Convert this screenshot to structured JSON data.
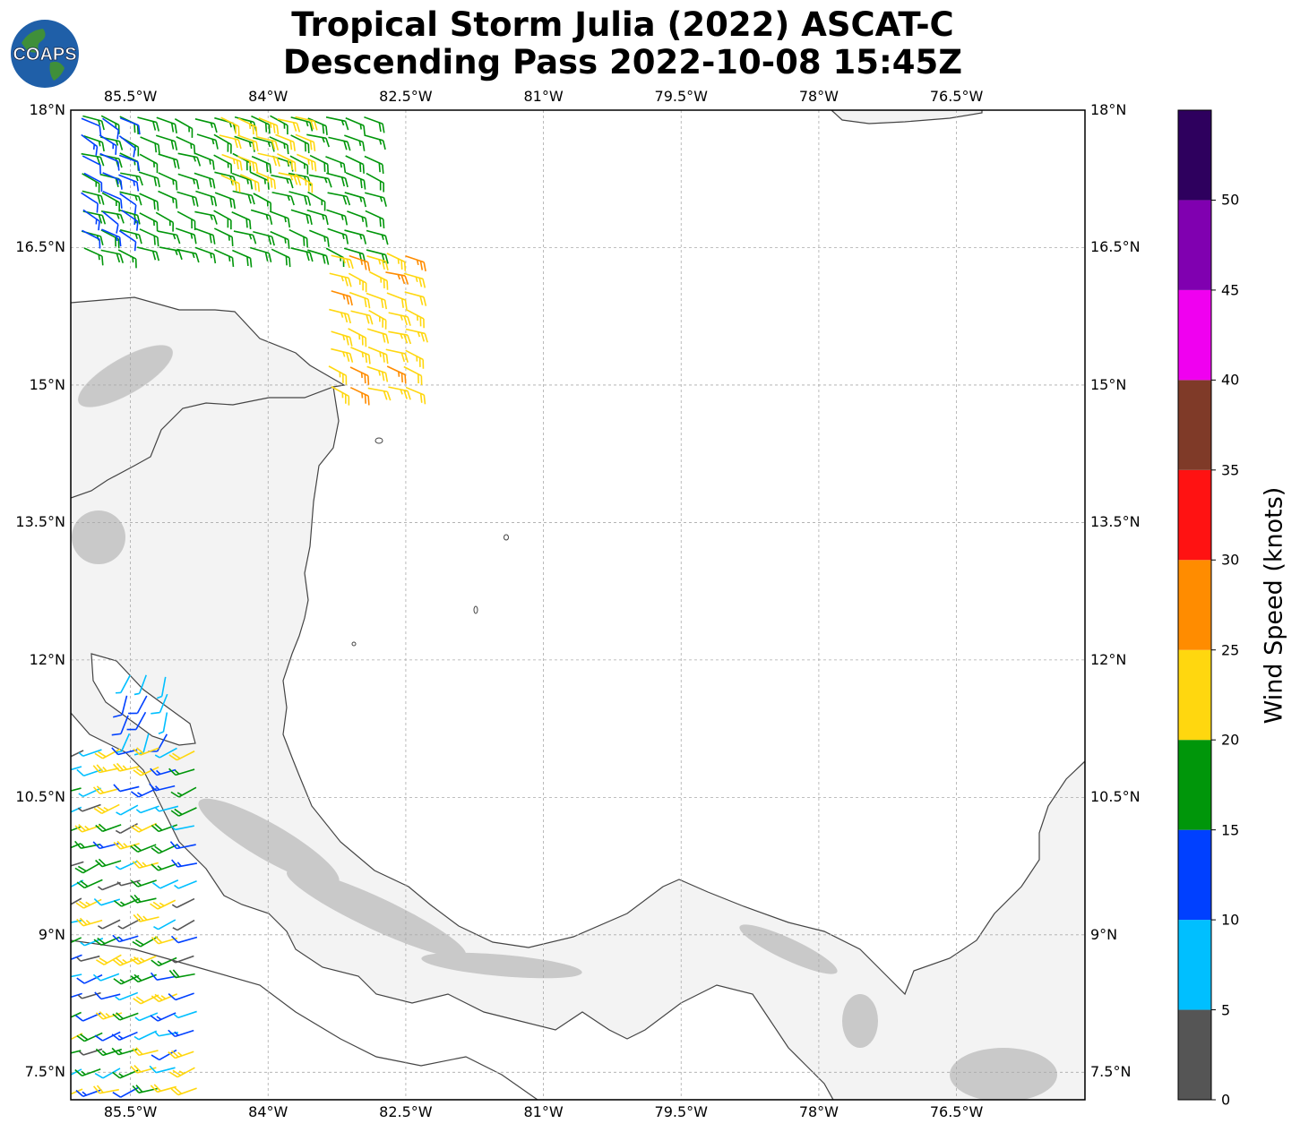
{
  "title": {
    "line1": "Tropical Storm Julia (2022) ASCAT-C",
    "line2": "Descending Pass 2022-10-08 15:45Z"
  },
  "logo": {
    "text": "COAPS",
    "icon": "globe-icon"
  },
  "map": {
    "lon_range": [
      -86.15,
      -75.1
    ],
    "lat_range": [
      7.2,
      18.0
    ],
    "lon_ticks": [
      {
        "value": -85.5,
        "label": "85.5°W"
      },
      {
        "value": -84.0,
        "label": "84°W"
      },
      {
        "value": -82.5,
        "label": "82.5°W"
      },
      {
        "value": -81.0,
        "label": "81°W"
      },
      {
        "value": -79.5,
        "label": "79.5°W"
      },
      {
        "value": -78.0,
        "label": "78°W"
      },
      {
        "value": -76.5,
        "label": "76.5°W"
      }
    ],
    "lat_ticks": [
      {
        "value": 18.0,
        "label": "18°N"
      },
      {
        "value": 16.5,
        "label": "16.5°N"
      },
      {
        "value": 15.0,
        "label": "15°N"
      },
      {
        "value": 13.5,
        "label": "13.5°N"
      },
      {
        "value": 12.0,
        "label": "12°N"
      },
      {
        "value": 10.5,
        "label": "10.5°N"
      },
      {
        "value": 9.0,
        "label": "9°N"
      },
      {
        "value": 7.5,
        "label": "7.5°N"
      }
    ],
    "gridlines": true,
    "land_color": "#f3f3f3",
    "coastline_color": "#444444"
  },
  "colorbar": {
    "title": "Wind Speed (knots)",
    "bins": [
      {
        "min": 0,
        "max": 5,
        "color": "#555555"
      },
      {
        "min": 5,
        "max": 10,
        "color": "#00bfff"
      },
      {
        "min": 10,
        "max": 15,
        "color": "#0040ff"
      },
      {
        "min": 15,
        "max": 20,
        "color": "#00960a"
      },
      {
        "min": 20,
        "max": 25,
        "color": "#ffd70f"
      },
      {
        "min": 25,
        "max": 30,
        "color": "#ff8c00"
      },
      {
        "min": 30,
        "max": 35,
        "color": "#ff1212"
      },
      {
        "min": 35,
        "max": 40,
        "color": "#7f3a28"
      },
      {
        "min": 40,
        "max": 45,
        "color": "#f000f0"
      },
      {
        "min": 45,
        "max": 50,
        "color": "#8000b0"
      },
      {
        "min": 50,
        "max": 55,
        "color": "#2e005e"
      }
    ],
    "tick_labels": [
      "0",
      "5",
      "10",
      "15",
      "20",
      "25",
      "30",
      "35",
      "40",
      "45",
      "50"
    ]
  },
  "wind_barbs": {
    "swaths": [
      {
        "name": "north-swath",
        "lon": [
          -86.1,
          -82.8
        ],
        "lat": [
          16.3,
          18.0
        ],
        "speed": [
          15,
          20
        ],
        "direction_deg": 110
      },
      {
        "name": "north-swath-yellow-core",
        "lon": [
          -84.6,
          -83.7
        ],
        "lat": [
          17.2,
          18.0
        ],
        "speed": [
          21,
          24
        ],
        "direction_deg": 110
      },
      {
        "name": "north-swath-blue-edge",
        "lon": [
          -86.1,
          -85.5
        ],
        "lat": [
          16.5,
          18.0
        ],
        "speed": [
          10,
          14
        ],
        "direction_deg": 120
      },
      {
        "name": "gulf-honduras-swath",
        "lon": [
          -83.4,
          -82.5
        ],
        "lat": [
          14.9,
          16.5
        ],
        "speed": [
          20,
          26
        ],
        "direction_deg": 110
      },
      {
        "name": "nicaragua-lake",
        "lon": [
          -85.6,
          -85.0
        ],
        "lat": [
          11.2,
          11.9
        ],
        "speed": [
          6,
          12
        ],
        "direction_deg": 200
      },
      {
        "name": "pacific-coast",
        "lon": [
          -86.1,
          -84.7
        ],
        "lat": [
          7.3,
          11.1
        ],
        "speed": [
          3,
          24
        ],
        "direction_deg": 250
      }
    ]
  }
}
